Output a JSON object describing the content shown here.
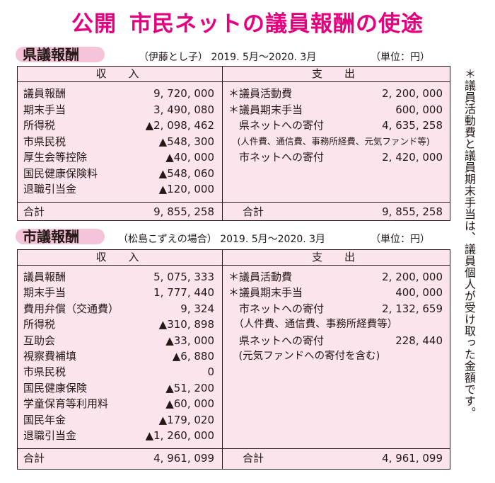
{
  "title": {
    "part1": "公開",
    "part2": "市民ネットの議員報酬の使途"
  },
  "note": "＊議員活動費と議員期末手当は、議員個人が受け取った金額です。",
  "sections": [
    {
      "label": "県議報酬",
      "person": "（伊藤とし子）",
      "period": "2019. 5月〜2020. 3月",
      "unit": "（単位：円）",
      "income_header": "収　入",
      "expense_header": "支　出",
      "income": [
        {
          "label": "議員報酬",
          "value": "9, 720, 000"
        },
        {
          "label": "期末手当",
          "value": "3, 490, 080"
        },
        {
          "label": "所得税",
          "value": "▲2, 098, 462"
        },
        {
          "label": "市県民税",
          "value": "▲548, 300"
        },
        {
          "label": "厚生会等控除",
          "value": "▲40, 000"
        },
        {
          "label": "国民健康保険料",
          "value": "▲548, 060"
        },
        {
          "label": "退職引当金",
          "value": "▲120, 000"
        }
      ],
      "expense": [
        {
          "label": "＊議員活動費",
          "value": "2, 200, 000"
        },
        {
          "label": "＊議員期末手当",
          "value": "600, 000"
        },
        {
          "label": "　県ネットへの寄付",
          "value": "4, 635, 258"
        },
        {
          "label": "　(人件費、通信費、事務所経費、元気ファンド等)",
          "value": ""
        },
        {
          "label": "　市ネットへの寄付",
          "value": "2, 420, 000"
        }
      ],
      "total_label": "合計",
      "income_total": "9, 855, 258",
      "expense_total": "9, 855, 258"
    },
    {
      "label": "市議報酬",
      "person": "（松島こずえの場合）",
      "period": "2019. 5月〜2020. 3月",
      "unit": "（単位：円）",
      "income_header": "収　入",
      "expense_header": "支　出",
      "income": [
        {
          "label": "議員報酬",
          "value": "5, 075, 333"
        },
        {
          "label": "期末手当",
          "value": "1, 777, 440"
        },
        {
          "label": "費用弁償（交通費）",
          "value": "9, 324"
        },
        {
          "label": "所得税",
          "value": "▲310, 898"
        },
        {
          "label": "互助会",
          "value": "▲33, 000"
        },
        {
          "label": "視察費補填",
          "value": "▲6, 880"
        },
        {
          "label": "市県民税",
          "value": "0"
        },
        {
          "label": "国民健康保険",
          "value": "▲51, 200"
        },
        {
          "label": "学童保育等利用料",
          "value": "▲60, 000"
        },
        {
          "label": "国民年金",
          "value": "▲179, 020"
        },
        {
          "label": "退職引当金",
          "value": "▲1, 260, 000"
        }
      ],
      "expense": [
        {
          "label": "＊議員活動費",
          "value": "2, 200, 000"
        },
        {
          "label": "＊議員期末手当",
          "value": "400, 000"
        },
        {
          "label": "　市ネットへの寄付",
          "value": "2, 132, 659"
        },
        {
          "label": "　（人件費、通信費、事務所経費等）",
          "value": ""
        },
        {
          "label": "　県ネットへの寄付",
          "value": "228, 440"
        },
        {
          "label": "　(元気ファンドへの寄付を含む)",
          "value": ""
        }
      ],
      "total_label": "合計",
      "income_total": "4, 961, 099",
      "expense_total": "4, 961, 099"
    }
  ]
}
